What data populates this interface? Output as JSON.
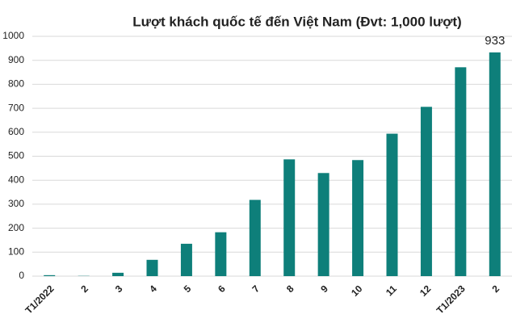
{
  "chart_data": {
    "type": "bar",
    "title": "Lượt khách quốc tế đến Việt Nam (Đvt: 1,000 lượt)",
    "categories": [
      "T1/2022",
      "2",
      "3",
      "4",
      "5",
      "6",
      "7",
      "8",
      "9",
      "10",
      "11",
      "12",
      "T1/2023",
      "2"
    ],
    "values": [
      4,
      1,
      14,
      68,
      135,
      183,
      318,
      487,
      430,
      484,
      594,
      706,
      871,
      933
    ],
    "value_labels": [
      null,
      null,
      null,
      null,
      null,
      null,
      null,
      null,
      null,
      null,
      null,
      null,
      null,
      "933"
    ],
    "color": "#0e7f7a",
    "ylim": [
      0,
      1000
    ],
    "yticks": [
      0,
      100,
      200,
      300,
      400,
      500,
      600,
      700,
      800,
      900,
      1000
    ],
    "grid": true
  }
}
